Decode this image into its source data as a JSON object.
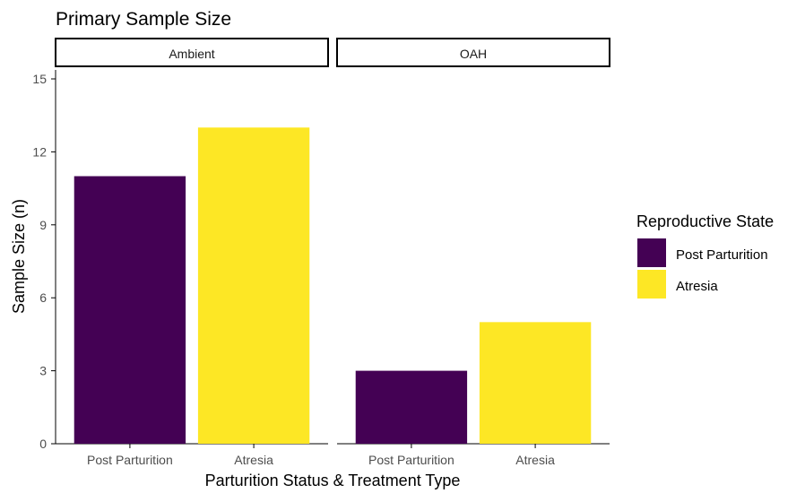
{
  "chart_data": {
    "type": "bar",
    "title": "Primary Sample Size",
    "xlabel": "Parturition Status & Treatment Type",
    "ylabel": "Sample Size (n)",
    "ylim": [
      0,
      15
    ],
    "yticks": [
      0,
      3,
      6,
      9,
      12,
      15
    ],
    "grid": false,
    "legend": {
      "title": "Reproductive State",
      "placement": "right",
      "entries": [
        {
          "name": "Post Parturition",
          "color": "#440154"
        },
        {
          "name": "Atresia",
          "color": "#FDE725"
        }
      ]
    },
    "categories": [
      "Post Parturition",
      "Atresia"
    ],
    "facets": [
      {
        "label": "Ambient",
        "values": [
          11,
          13
        ]
      },
      {
        "label": "OAH",
        "values": [
          3,
          5
        ]
      }
    ]
  }
}
